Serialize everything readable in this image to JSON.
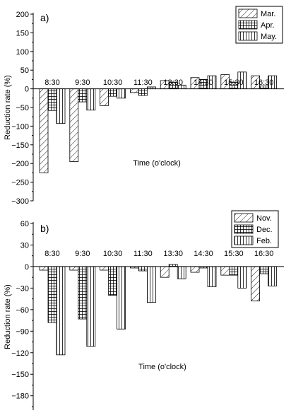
{
  "chart_data": [
    {
      "type": "bar",
      "panel_label": "a)",
      "categories": [
        "8:30",
        "9:30",
        "10:30",
        "11:30",
        "13:30",
        "14:30",
        "15:30",
        "16:30"
      ],
      "series": [
        {
          "name": "Mar.",
          "values": [
            -225,
            -195,
            -45,
            -10,
            22,
            30,
            38,
            35
          ]
        },
        {
          "name": "Apr.",
          "values": [
            -58,
            -35,
            -20,
            -18,
            18,
            25,
            18,
            8
          ]
        },
        {
          "name": "May.",
          "values": [
            -93,
            -57,
            -25,
            5,
            10,
            35,
            45,
            35
          ]
        }
      ],
      "xlabel": "Time (o'clock)",
      "ylabel": "Reduction rate (%)",
      "ylim": [
        -300,
        200
      ],
      "yticks": [
        200,
        150,
        100,
        50,
        0,
        -50,
        -100,
        -150,
        -200,
        -250,
        -300
      ],
      "legend_position": "top-right"
    },
    {
      "type": "bar",
      "panel_label": "b)",
      "categories": [
        "8:30",
        "9:30",
        "10:30",
        "11:30",
        "13:30",
        "14:30",
        "15:30",
        "16:30"
      ],
      "series": [
        {
          "name": "Nov.",
          "values": [
            -5,
            -5,
            -5,
            -2,
            -15,
            -8,
            -12,
            -48
          ]
        },
        {
          "name": "Dec.",
          "values": [
            -78,
            -73,
            -40,
            -6,
            3,
            -2,
            -12,
            -10
          ]
        },
        {
          "name": "Feb.",
          "values": [
            -123,
            -111,
            -87,
            -50,
            -17,
            -28,
            -30,
            -27
          ]
        }
      ],
      "xlabel": "Time (o'clock)",
      "ylabel": "Reduction rate (%)",
      "ylim": [
        -200,
        60
      ],
      "yticks": [
        60,
        30,
        0,
        -30,
        -60,
        -90,
        -120,
        -150,
        -180
      ],
      "legend_position": "top-right"
    }
  ]
}
